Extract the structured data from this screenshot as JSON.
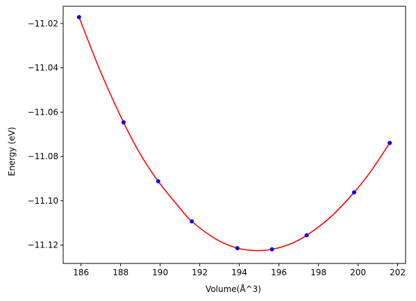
{
  "chart_data": {
    "type": "scatter",
    "xlabel": "Volume(Å^3)",
    "ylabel": "Energy (eV)",
    "xlim": [
      185.1,
      202.4
    ],
    "ylim": [
      -11.1283,
      -11.0122
    ],
    "x_ticks": [
      186,
      188,
      190,
      192,
      194,
      196,
      198,
      200,
      202
    ],
    "y_ticks": [
      -11.02,
      -11.04,
      -11.06,
      -11.08,
      -11.1,
      -11.12
    ],
    "x_tick_labels": [
      "186",
      "188",
      "190",
      "192",
      "194",
      "196",
      "198",
      "200",
      "202"
    ],
    "y_tick_labels": [
      "−11.02",
      "−11.04",
      "−11.06",
      "−11.08",
      "−11.10",
      "−11.12"
    ],
    "grid": false,
    "series": [
      {
        "kind": "points",
        "color": "#0000ff",
        "x": [
          185.9,
          188.15,
          189.9,
          191.6,
          193.9,
          195.65,
          197.4,
          199.8,
          201.6
        ],
        "y": [
          -11.0171,
          -11.0646,
          -11.0912,
          -11.1093,
          -11.1214,
          -11.1219,
          -11.1156,
          -11.0962,
          -11.0739
        ]
      },
      {
        "kind": "fit-curve",
        "color": "#ff0000",
        "x": [
          185.9,
          187.0,
          188.15,
          189.0,
          189.9,
          190.8,
          191.6,
          192.8,
          193.9,
          194.9,
          195.65,
          196.5,
          197.4,
          198.6,
          199.8,
          200.7,
          201.6
        ],
        "y": [
          -11.0171,
          -11.042,
          -11.0646,
          -11.079,
          -11.0912,
          -11.1012,
          -11.1093,
          -11.1172,
          -11.1214,
          -11.1225,
          -11.1219,
          -11.1198,
          -11.1156,
          -11.1074,
          -11.0962,
          -11.086,
          -11.0739
        ]
      }
    ]
  }
}
